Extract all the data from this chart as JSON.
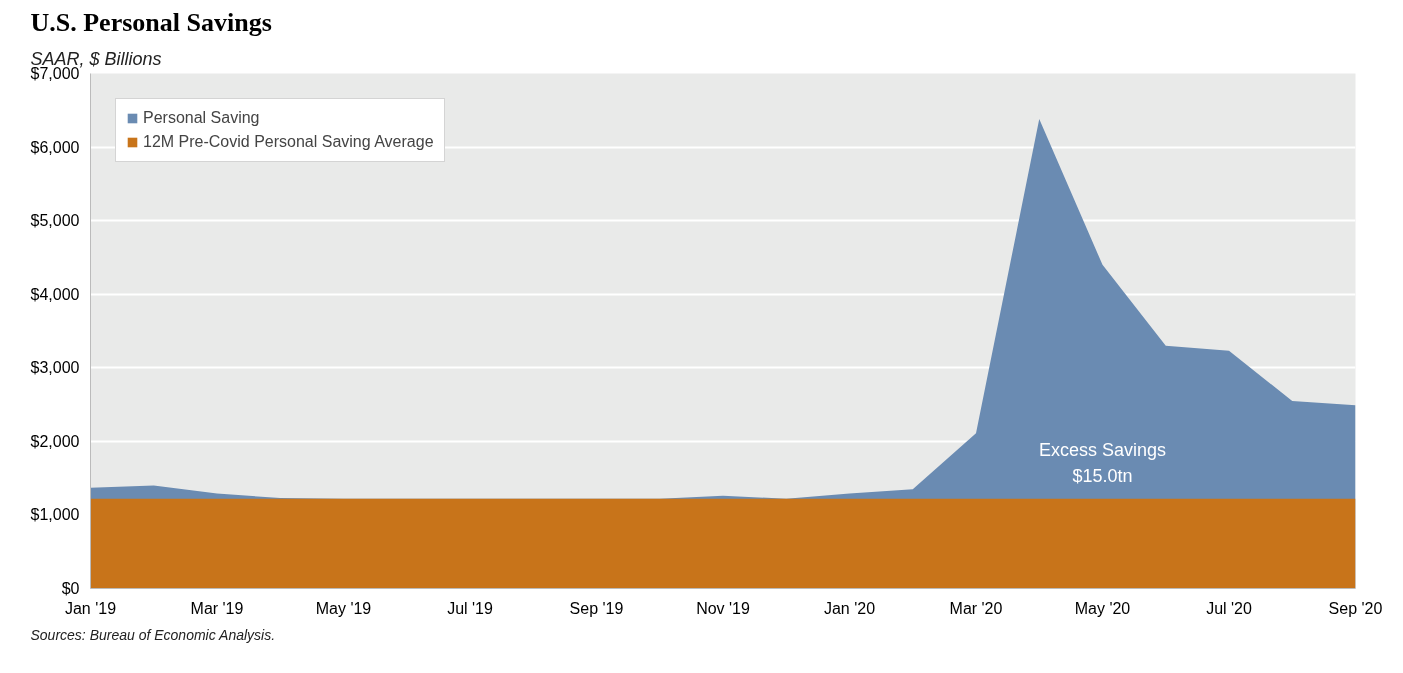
{
  "chart_data": {
    "type": "area",
    "title": "U.S. Personal Savings",
    "subtitle": "SAAR, $ Billions",
    "categories": [
      "Jan '19",
      null,
      "Mar '19",
      null,
      "May '19",
      null,
      "Jul '19",
      null,
      "Sep '19",
      null,
      "Nov '19",
      null,
      "Jan '20",
      null,
      "Mar '20",
      null,
      "May '20",
      null,
      "Jul '20",
      null,
      "Sep '20"
    ],
    "series": [
      {
        "name": "Personal Saving",
        "color": "#6a8bb2",
        "values": [
          1370,
          1400,
          1290,
          1230,
          1220,
          1220,
          1220,
          1220,
          1220,
          1220,
          1260,
          1220,
          1290,
          1350,
          2110,
          6380,
          4400,
          3300,
          3230,
          2550,
          2490
        ]
      },
      {
        "name": "12M Pre-Covid Personal Saving Average",
        "color": "#c8741a",
        "values": [
          1220,
          1220,
          1220,
          1220,
          1220,
          1220,
          1220,
          1220,
          1220,
          1220,
          1220,
          1220,
          1220,
          1220,
          1220,
          1220,
          1220,
          1220,
          1220,
          1220,
          1220
        ]
      }
    ],
    "ylim": [
      0,
      7000
    ],
    "yticks": [
      {
        "value": 0,
        "label": "$0"
      },
      {
        "value": 1000,
        "label": "$1,000"
      },
      {
        "value": 2000,
        "label": "$2,000"
      },
      {
        "value": 3000,
        "label": "$3,000"
      },
      {
        "value": 4000,
        "label": "$4,000"
      },
      {
        "value": 5000,
        "label": "$5,000"
      },
      {
        "value": 6000,
        "label": "$6,000"
      },
      {
        "value": 7000,
        "label": "$7,000"
      }
    ],
    "grid": "y",
    "legend": "top left",
    "annotations": [
      "Excess Savings\n$15.0tn",
      "Sources: Bureau of Economic Analysis."
    ]
  }
}
